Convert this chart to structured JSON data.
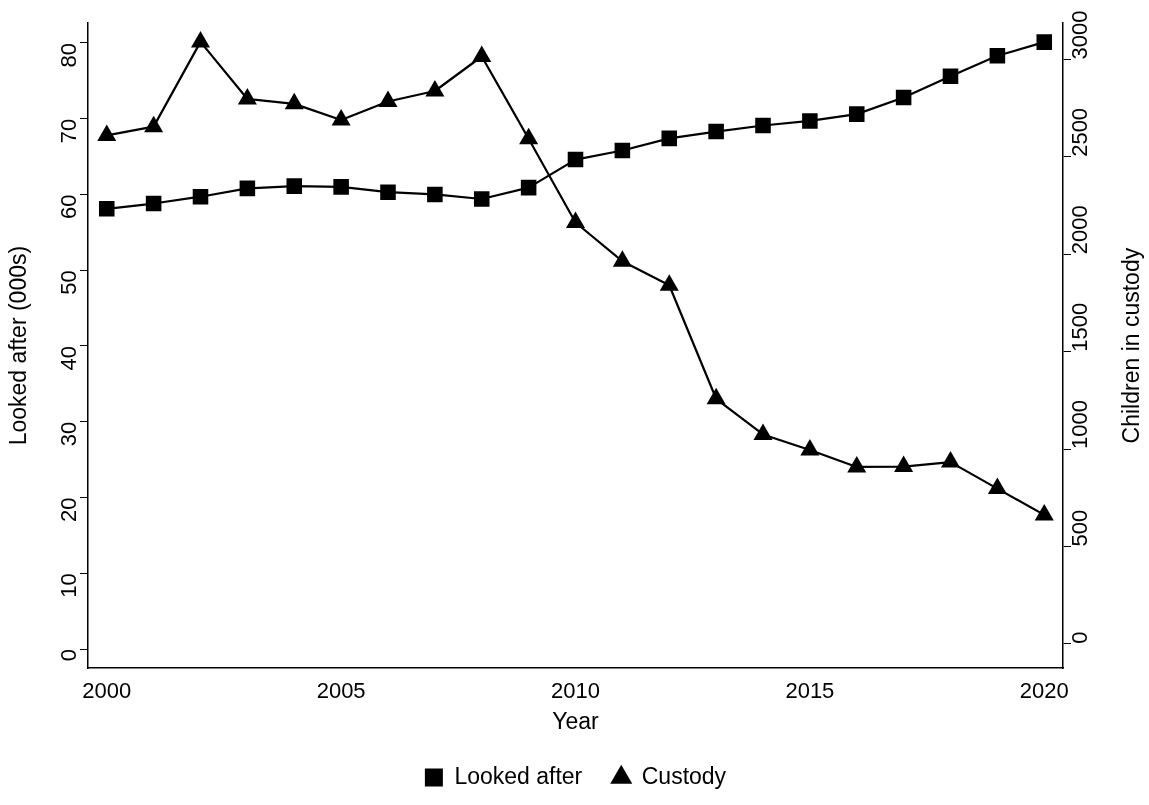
{
  "chart_data": {
    "type": "line",
    "xlabel": "Year",
    "ylabel": "Looked after (000s)",
    "y2label": "Children in custody",
    "x": [
      2000,
      2001,
      2002,
      2003,
      2004,
      2005,
      2006,
      2007,
      2008,
      2009,
      2010,
      2011,
      2012,
      2013,
      2014,
      2015,
      2016,
      2017,
      2018,
      2019,
      2020
    ],
    "series": [
      {
        "name": "Looked after",
        "color": "#000000",
        "marker": "square",
        "values": [
          58.1,
          58.8,
          59.7,
          60.8,
          61.1,
          61.0,
          60.3,
          60.0,
          59.4,
          60.9,
          64.6,
          65.8,
          67.4,
          68.3,
          69.1,
          69.7,
          70.6,
          72.8,
          75.6,
          78.3,
          80.1
        ]
      },
      {
        "name": "Custody",
        "color": "#000000",
        "marker": "triangle",
        "axis": "y2",
        "values": [
          2610,
          2655,
          3090,
          2797,
          2772,
          2689,
          2784,
          2838,
          3015,
          2593,
          2163,
          1964,
          1841,
          1258,
          1075,
          995,
          908,
          910,
          933,
          797,
          662
        ]
      }
    ],
    "xlim": [
      1999.6,
      2020.4
    ],
    "xticks": [
      2000,
      2005,
      2010,
      2015,
      2020
    ],
    "ylim": [
      -2.5,
      82.6
    ],
    "yticks": [
      0,
      10,
      20,
      30,
      40,
      50,
      60,
      70,
      80
    ],
    "y2lim": [
      -124,
      3186
    ],
    "y2ticks": [
      0,
      500,
      1000,
      1500,
      2000,
      2500,
      3000
    ],
    "grid": false,
    "legend": "bottom",
    "line_style": "solid"
  }
}
